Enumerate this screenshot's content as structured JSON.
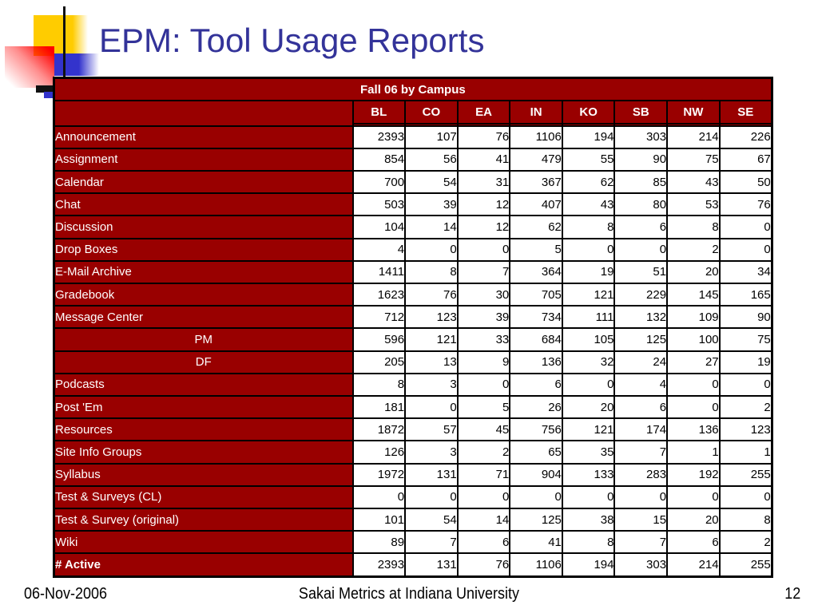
{
  "slide": {
    "title": "EPM: Tool Usage Reports",
    "footer": {
      "date": "06-Nov-2006",
      "center": "Sakai Metrics at Indiana University",
      "page_number": "12"
    }
  },
  "table": {
    "title": "Fall 06 by Campus",
    "columns": [
      "BL",
      "CO",
      "EA",
      "IN",
      "KO",
      "SB",
      "NW",
      "SE"
    ],
    "rows": [
      {
        "label": "Announcement",
        "align": "left",
        "bold": false,
        "values": [
          "2393",
          "107",
          "76",
          "1106",
          "194",
          "303",
          "214",
          "226"
        ]
      },
      {
        "label": "Assignment",
        "align": "left",
        "bold": false,
        "values": [
          "854",
          "56",
          "41",
          "479",
          "55",
          "90",
          "75",
          "67"
        ]
      },
      {
        "label": "Calendar",
        "align": "left",
        "bold": false,
        "values": [
          "700",
          "54",
          "31",
          "367",
          "62",
          "85",
          "43",
          "50"
        ]
      },
      {
        "label": "Chat",
        "align": "left",
        "bold": false,
        "values": [
          "503",
          "39",
          "12",
          "407",
          "43",
          "80",
          "53",
          "76"
        ]
      },
      {
        "label": "Discussion",
        "align": "left",
        "bold": false,
        "values": [
          "104",
          "14",
          "12",
          "62",
          "8",
          "6",
          "8",
          "0"
        ]
      },
      {
        "label": "Drop Boxes",
        "align": "left",
        "bold": false,
        "values": [
          "4",
          "0",
          "0",
          "5",
          "0",
          "0",
          "2",
          "0"
        ]
      },
      {
        "label": "E-Mail Archive",
        "align": "left",
        "bold": false,
        "values": [
          "1411",
          "8",
          "7",
          "364",
          "19",
          "51",
          "20",
          "34"
        ]
      },
      {
        "label": "Gradebook",
        "align": "left",
        "bold": false,
        "values": [
          "1623",
          "76",
          "30",
          "705",
          "121",
          "229",
          "145",
          "165"
        ]
      },
      {
        "label": "Message Center",
        "align": "left",
        "bold": false,
        "values": [
          "712",
          "123",
          "39",
          "734",
          "111",
          "132",
          "109",
          "90"
        ]
      },
      {
        "label": "PM",
        "align": "center",
        "bold": false,
        "values": [
          "596",
          "121",
          "33",
          "684",
          "105",
          "125",
          "100",
          "75"
        ]
      },
      {
        "label": "DF",
        "align": "center",
        "bold": false,
        "values": [
          "205",
          "13",
          "9",
          "136",
          "32",
          "24",
          "27",
          "19"
        ]
      },
      {
        "label": "Podcasts",
        "align": "left",
        "bold": false,
        "values": [
          "8",
          "3",
          "0",
          "6",
          "0",
          "4",
          "0",
          "0"
        ]
      },
      {
        "label": "Post 'Em",
        "align": "left",
        "bold": false,
        "values": [
          "181",
          "0",
          "5",
          "26",
          "20",
          "6",
          "0",
          "2"
        ]
      },
      {
        "label": "Resources",
        "align": "left",
        "bold": false,
        "values": [
          "1872",
          "57",
          "45",
          "756",
          "121",
          "174",
          "136",
          "123"
        ]
      },
      {
        "label": "Site Info Groups",
        "align": "left",
        "bold": false,
        "values": [
          "126",
          "3",
          "2",
          "65",
          "35",
          "7",
          "1",
          "1"
        ]
      },
      {
        "label": "Syllabus",
        "align": "left",
        "bold": false,
        "values": [
          "1972",
          "131",
          "71",
          "904",
          "133",
          "283",
          "192",
          "255"
        ]
      },
      {
        "label": "Test & Surveys (CL)",
        "align": "left",
        "bold": false,
        "values": [
          "0",
          "0",
          "0",
          "0",
          "0",
          "0",
          "0",
          "0"
        ]
      },
      {
        "label": "Test & Survey (original)",
        "align": "left",
        "bold": false,
        "values": [
          "101",
          "54",
          "14",
          "125",
          "38",
          "15",
          "20",
          "8"
        ]
      },
      {
        "label": "Wiki",
        "align": "left",
        "bold": false,
        "values": [
          "89",
          "7",
          "6",
          "41",
          "8",
          "7",
          "6",
          "2"
        ]
      },
      {
        "label": "# Active",
        "align": "left",
        "bold": true,
        "values": [
          "2393",
          "131",
          "76",
          "1106",
          "194",
          "303",
          "214",
          "255"
        ]
      }
    ]
  },
  "colors": {
    "table_red": "#990000",
    "title_blue": "#333399",
    "accent_yellow": "#FFCC00",
    "accent_blue": "#3333CC",
    "accent_red": "#FF0000"
  }
}
